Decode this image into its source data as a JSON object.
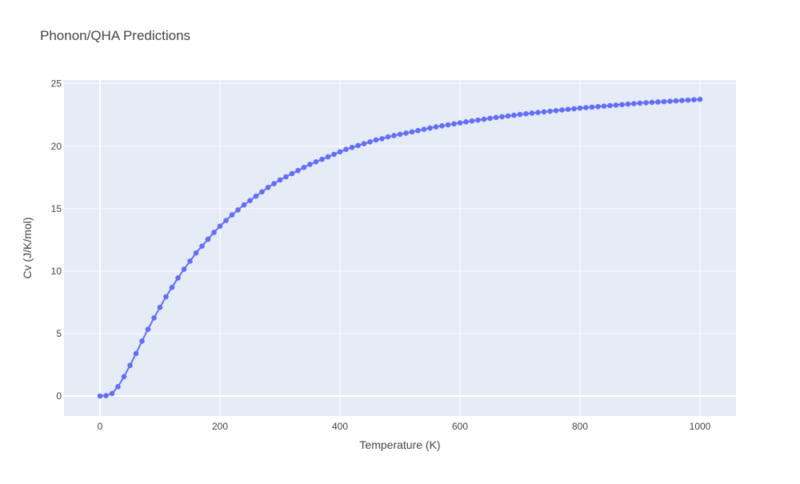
{
  "chart_data": {
    "type": "line",
    "title": "Phonon/QHA Predictions",
    "xlabel": "Temperature (K)",
    "ylabel": "Cv (J/K/mol)",
    "xlim": [
      -60,
      1060
    ],
    "ylim": [
      -1.6,
      25.3
    ],
    "xticks": [
      0,
      200,
      400,
      600,
      800,
      1000
    ],
    "yticks": [
      0,
      5,
      10,
      15,
      20,
      25
    ],
    "grid": true,
    "colors": {
      "series": "#636efa",
      "plot_bg": "#e5ecf6",
      "grid": "#ffffff"
    },
    "series": [
      {
        "x": [
          0,
          10,
          20,
          30,
          40,
          50,
          60,
          70,
          80,
          90,
          100,
          110,
          120,
          130,
          140,
          150,
          160,
          170,
          180,
          190,
          200,
          210,
          220,
          230,
          240,
          250,
          260,
          270,
          280,
          290,
          300,
          310,
          320,
          330,
          340,
          350,
          360,
          370,
          380,
          390,
          400,
          410,
          420,
          430,
          440,
          450,
          460,
          470,
          480,
          490,
          500,
          510,
          520,
          530,
          540,
          550,
          560,
          570,
          580,
          590,
          600,
          610,
          620,
          630,
          640,
          650,
          660,
          670,
          680,
          690,
          700,
          710,
          720,
          730,
          740,
          750,
          760,
          770,
          780,
          790,
          800,
          810,
          820,
          830,
          840,
          850,
          860,
          870,
          880,
          890,
          900,
          910,
          920,
          930,
          940,
          950,
          960,
          970,
          980,
          990,
          1000
        ],
        "y": [
          0.0,
          0.03,
          0.2,
          0.75,
          1.55,
          2.45,
          3.4,
          4.4,
          5.35,
          6.25,
          7.1,
          7.95,
          8.7,
          9.45,
          10.15,
          10.8,
          11.45,
          12.0,
          12.55,
          13.1,
          13.6,
          14.05,
          14.5,
          14.9,
          15.3,
          15.65,
          16.0,
          16.35,
          16.7,
          17.0,
          17.3,
          17.55,
          17.8,
          18.05,
          18.3,
          18.55,
          18.75,
          18.95,
          19.15,
          19.35,
          19.55,
          19.75,
          19.9,
          20.05,
          20.2,
          20.35,
          20.5,
          20.6,
          20.75,
          20.85,
          20.95,
          21.05,
          21.15,
          21.25,
          21.35,
          21.45,
          21.55,
          21.63,
          21.71,
          21.79,
          21.87,
          21.95,
          22.02,
          22.09,
          22.16,
          22.23,
          22.3,
          22.36,
          22.42,
          22.48,
          22.54,
          22.6,
          22.65,
          22.7,
          22.75,
          22.8,
          22.85,
          22.9,
          22.95,
          23.0,
          23.05,
          23.09,
          23.13,
          23.17,
          23.21,
          23.25,
          23.29,
          23.33,
          23.37,
          23.41,
          23.45,
          23.48,
          23.51,
          23.54,
          23.57,
          23.6,
          23.63,
          23.66,
          23.69,
          23.72,
          23.75
        ]
      }
    ]
  }
}
